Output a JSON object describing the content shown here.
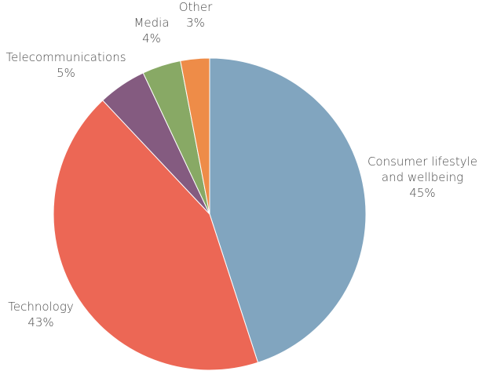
{
  "chart_data": {
    "type": "pie",
    "start_angle_deg": 0,
    "direction": "clockwise",
    "slices": [
      {
        "label_lines": [
          "Consumer lifestyle",
          "and wellbeing"
        ],
        "value_label": "45%",
        "value": 45,
        "color": "#81a5bf"
      },
      {
        "label_lines": [
          "Technology"
        ],
        "value_label": "43%",
        "value": 43,
        "color": "#ec6755"
      },
      {
        "label_lines": [
          "Telecommunications"
        ],
        "value_label": "5%",
        "value": 5,
        "color": "#845b80"
      },
      {
        "label_lines": [
          "Media"
        ],
        "value_label": "4%",
        "value": 4,
        "color": "#88a965"
      },
      {
        "label_lines": [
          "Other"
        ],
        "value_label": "3%",
        "value": 3,
        "color": "#ee8c48"
      }
    ]
  }
}
